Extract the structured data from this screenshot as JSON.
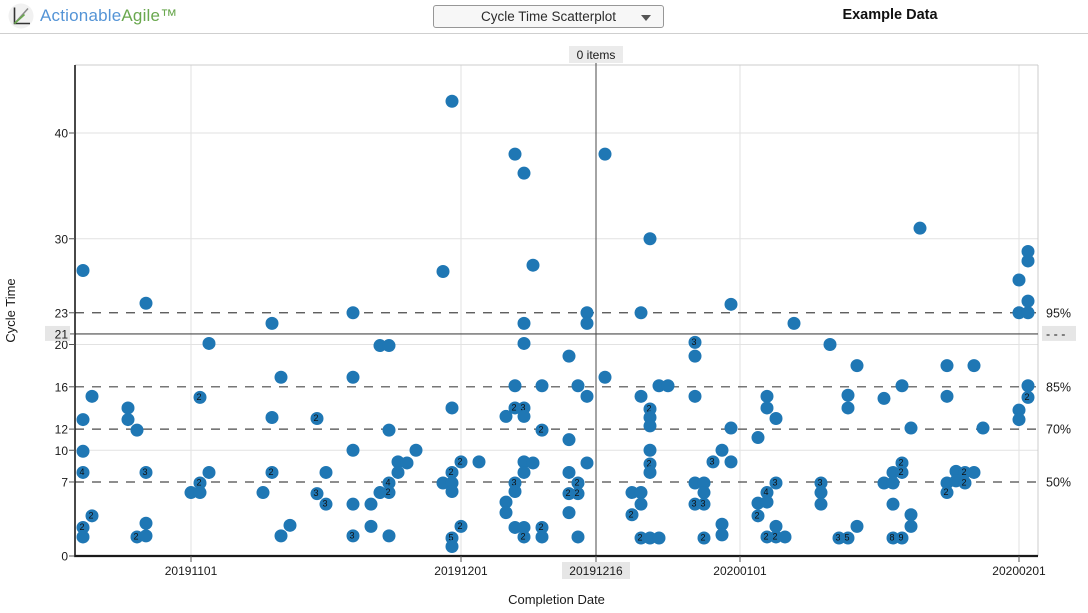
{
  "header": {
    "logo_text_1": "Actionable",
    "logo_text_2": "Agile™",
    "chart_selector_label": "Cycle Time Scatterplot",
    "dataset_label": "Example Data"
  },
  "chart": {
    "ylabel": "Cycle Time",
    "xlabel": "Completion Date",
    "items_label": "0 items",
    "colors": {
      "dot": "#1f77b4",
      "gridline": "#e2e2e2",
      "plot_border": "#cccccc",
      "axis_line": "#1a1a1a",
      "percentile_line": "#4a4a4a",
      "crosshair_line": "#4a4a4a",
      "highlight_bg": "#e6e6e6",
      "logo_blue": "#5494d6",
      "logo_green": "#6aa84f"
    },
    "y_ticks": [
      0,
      7,
      10,
      12,
      16,
      20,
      21,
      23,
      30,
      40
    ],
    "y_gridline_values": [
      10,
      20,
      30,
      40
    ],
    "x_ticks": [
      "20191101",
      "20191201",
      "20200101",
      "20200201"
    ],
    "percentiles": [
      {
        "label": "95%",
        "value": 23
      },
      {
        "label": "85%",
        "value": 16
      },
      {
        "label": "70%",
        "value": 12
      },
      {
        "label": "50%",
        "value": 7
      }
    ],
    "crosshair": {
      "x_date": "20191216",
      "x_label": "20191216",
      "y_value": 21,
      "y_label": "21",
      "right_label": "- - -"
    }
  },
  "chart_data": {
    "type": "scatter",
    "title": "Cycle Time Scatterplot",
    "xlabel": "Completion Date",
    "ylabel": "Cycle Time",
    "x_range": [
      "20191019",
      "20200203"
    ],
    "ylim": [
      0,
      46
    ],
    "legend": "none",
    "point_format": [
      "completion_date_yyyymmdd",
      "cycle_time_days",
      "stacked_item_count_label_0_means_single"
    ],
    "points": [
      [
        "20191020",
        27.0,
        0
      ],
      [
        "20191021",
        15.1,
        0
      ],
      [
        "20191020",
        12.9,
        0
      ],
      [
        "20191020",
        9.9,
        0
      ],
      [
        "20191020",
        7.9,
        4
      ],
      [
        "20191021",
        3.8,
        2
      ],
      [
        "20191020",
        2.7,
        2
      ],
      [
        "20191020",
        1.8,
        0
      ],
      [
        "20191025",
        14.0,
        0
      ],
      [
        "20191025",
        12.9,
        0
      ],
      [
        "20191026",
        11.9,
        0
      ],
      [
        "20191027",
        23.9,
        0
      ],
      [
        "20191027",
        7.9,
        3
      ],
      [
        "20191027",
        3.1,
        0
      ],
      [
        "20191026",
        1.8,
        2
      ],
      [
        "20191027",
        1.9,
        0
      ],
      [
        "20191103",
        20.1,
        0
      ],
      [
        "20191102",
        15.0,
        2
      ],
      [
        "20191103",
        7.9,
        0
      ],
      [
        "20191102",
        6.9,
        2
      ],
      [
        "20191101",
        6.0,
        0
      ],
      [
        "20191102",
        6.0,
        0
      ],
      [
        "20191110",
        22.0,
        0
      ],
      [
        "20191111",
        16.9,
        0
      ],
      [
        "20191110",
        13.1,
        0
      ],
      [
        "20191110",
        7.9,
        2
      ],
      [
        "20191109",
        6.0,
        0
      ],
      [
        "20191112",
        2.9,
        0
      ],
      [
        "20191111",
        1.9,
        0
      ],
      [
        "20191115",
        13.0,
        2
      ],
      [
        "20191116",
        7.9,
        0
      ],
      [
        "20191115",
        5.9,
        3
      ],
      [
        "20191116",
        4.9,
        3
      ],
      [
        "20191119",
        23.0,
        0
      ],
      [
        "20191119",
        16.9,
        0
      ],
      [
        "20191119",
        10.0,
        0
      ],
      [
        "20191119",
        4.9,
        0
      ],
      [
        "20191121",
        4.9,
        0
      ],
      [
        "20191121",
        2.8,
        0
      ],
      [
        "20191119",
        1.9,
        3
      ],
      [
        "20191122",
        19.9,
        0
      ],
      [
        "20191123",
        19.9,
        0
      ],
      [
        "20191123",
        11.9,
        0
      ],
      [
        "20191124",
        8.9,
        0
      ],
      [
        "20191123",
        6.9,
        4
      ],
      [
        "20191123",
        6.0,
        2
      ],
      [
        "20191122",
        6.0,
        0
      ],
      [
        "20191126",
        10.0,
        0
      ],
      [
        "20191125",
        8.8,
        0
      ],
      [
        "20191124",
        7.9,
        0
      ],
      [
        "20191123",
        1.9,
        0
      ],
      [
        "20191130",
        43.0,
        0
      ],
      [
        "20191129",
        26.9,
        0
      ],
      [
        "20191130",
        14.0,
        0
      ],
      [
        "20191201",
        8.9,
        2
      ],
      [
        "20191130",
        7.9,
        2
      ],
      [
        "20191203",
        8.9,
        0
      ],
      [
        "20191129",
        6.9,
        0
      ],
      [
        "20191130",
        6.9,
        0
      ],
      [
        "20191130",
        6.1,
        0
      ],
      [
        "20191201",
        2.8,
        2
      ],
      [
        "20191130",
        1.7,
        5
      ],
      [
        "20191130",
        0.9,
        0
      ],
      [
        "20191207",
        38.0,
        0
      ],
      [
        "20191208",
        36.2,
        0
      ],
      [
        "20191209",
        27.5,
        0
      ],
      [
        "20191208",
        22.0,
        0
      ],
      [
        "20191208",
        20.1,
        0
      ],
      [
        "20191207",
        16.1,
        0
      ],
      [
        "20191210",
        16.1,
        0
      ],
      [
        "20191207",
        14.0,
        2
      ],
      [
        "20191208",
        14.0,
        3
      ],
      [
        "20191206",
        13.2,
        0
      ],
      [
        "20191208",
        13.2,
        0
      ],
      [
        "20191210",
        11.9,
        2
      ],
      [
        "20191208",
        8.9,
        0
      ],
      [
        "20191209",
        8.8,
        0
      ],
      [
        "20191208",
        7.9,
        0
      ],
      [
        "20191207",
        6.9,
        3
      ],
      [
        "20191207",
        6.1,
        0
      ],
      [
        "20191206",
        5.1,
        0
      ],
      [
        "20191206",
        4.1,
        0
      ],
      [
        "20191207",
        2.7,
        0
      ],
      [
        "20191208",
        2.7,
        0
      ],
      [
        "20191208",
        1.8,
        2
      ],
      [
        "20191210",
        2.7,
        2
      ],
      [
        "20191210",
        1.8,
        0
      ],
      [
        "20191213",
        18.9,
        0
      ],
      [
        "20191214",
        16.1,
        0
      ],
      [
        "20191215",
        15.1,
        0
      ],
      [
        "20191213",
        11.0,
        0
      ],
      [
        "20191215",
        8.8,
        0
      ],
      [
        "20191213",
        7.9,
        0
      ],
      [
        "20191214",
        6.9,
        2
      ],
      [
        "20191213",
        5.9,
        2
      ],
      [
        "20191214",
        5.9,
        2
      ],
      [
        "20191213",
        4.1,
        0
      ],
      [
        "20191214",
        1.8,
        0
      ],
      [
        "20191215",
        23.0,
        0
      ],
      [
        "20191215",
        22.0,
        0
      ],
      [
        "20191217",
        38.0,
        0
      ],
      [
        "20191222",
        30.0,
        0
      ],
      [
        "20191221",
        23.0,
        0
      ],
      [
        "20191217",
        16.9,
        0
      ],
      [
        "20191223",
        16.1,
        0
      ],
      [
        "20191224",
        16.1,
        0
      ],
      [
        "20191221",
        15.1,
        0
      ],
      [
        "20191222",
        13.9,
        2
      ],
      [
        "20191222",
        13.1,
        0
      ],
      [
        "20191222",
        12.3,
        0
      ],
      [
        "20191222",
        10.0,
        0
      ],
      [
        "20191222",
        8.7,
        2
      ],
      [
        "20191222",
        7.9,
        0
      ],
      [
        "20191220",
        6.0,
        0
      ],
      [
        "20191221",
        6.0,
        0
      ],
      [
        "20191221",
        4.9,
        0
      ],
      [
        "20191220",
        3.9,
        2
      ],
      [
        "20191221",
        1.7,
        2
      ],
      [
        "20191222",
        1.7,
        0
      ],
      [
        "20191223",
        1.7,
        0
      ],
      [
        "20191227",
        20.2,
        3
      ],
      [
        "20191227",
        18.9,
        0
      ],
      [
        "20191227",
        15.1,
        0
      ],
      [
        "20191229",
        8.9,
        3
      ],
      [
        "20191230",
        10.0,
        0
      ],
      [
        "20191231",
        8.9,
        0
      ],
      [
        "20191227",
        6.9,
        0
      ],
      [
        "20191228",
        6.9,
        0
      ],
      [
        "20191228",
        6.0,
        0
      ],
      [
        "20191227",
        4.9,
        3
      ],
      [
        "20191228",
        4.9,
        3
      ],
      [
        "20191230",
        3.0,
        0
      ],
      [
        "20191230",
        2.0,
        0
      ],
      [
        "20191228",
        1.7,
        2
      ],
      [
        "20191231",
        23.8,
        0
      ],
      [
        "20191231",
        12.1,
        0
      ],
      [
        "20200107",
        22.0,
        0
      ],
      [
        "20200104",
        15.1,
        0
      ],
      [
        "20200104",
        14.0,
        0
      ],
      [
        "20200105",
        13.0,
        0
      ],
      [
        "20200103",
        11.2,
        0
      ],
      [
        "20200105",
        6.9,
        3
      ],
      [
        "20200104",
        6.0,
        4
      ],
      [
        "20200103",
        5.0,
        0
      ],
      [
        "20200104",
        5.1,
        0
      ],
      [
        "20200103",
        3.8,
        2
      ],
      [
        "20200105",
        2.8,
        0
      ],
      [
        "20200104",
        1.8,
        2
      ],
      [
        "20200105",
        1.8,
        2
      ],
      [
        "20200106",
        1.8,
        0
      ],
      [
        "20200111",
        20.0,
        0
      ],
      [
        "20200110",
        6.9,
        3
      ],
      [
        "20200110",
        6.0,
        0
      ],
      [
        "20200110",
        4.9,
        0
      ],
      [
        "20200112",
        1.7,
        3
      ],
      [
        "20200113",
        1.7,
        5
      ],
      [
        "20200114",
        2.8,
        0
      ],
      [
        "20200114",
        18.0,
        0
      ],
      [
        "20200113",
        15.2,
        0
      ],
      [
        "20200113",
        14.0,
        0
      ],
      [
        "20200117",
        14.9,
        0
      ],
      [
        "20200119",
        16.1,
        0
      ],
      [
        "20200118",
        7.9,
        0
      ],
      [
        "20200119",
        8.8,
        2
      ],
      [
        "20200119",
        7.9,
        2
      ],
      [
        "20200117",
        6.9,
        0
      ],
      [
        "20200118",
        6.9,
        0
      ],
      [
        "20200118",
        4.9,
        0
      ],
      [
        "20200120",
        3.9,
        0
      ],
      [
        "20200120",
        2.8,
        0
      ],
      [
        "20200118",
        1.7,
        8
      ],
      [
        "20200119",
        1.7,
        9
      ],
      [
        "20200121",
        31.0,
        0
      ],
      [
        "20200120",
        12.1,
        0
      ],
      [
        "20200124",
        18.0,
        0
      ],
      [
        "20200127",
        18.0,
        0
      ],
      [
        "20200124",
        15.1,
        0
      ],
      [
        "20200125",
        8.0,
        0
      ],
      [
        "20200124",
        6.9,
        0
      ],
      [
        "20200125",
        7.1,
        0
      ],
      [
        "20200126",
        7.9,
        2
      ],
      [
        "20200126",
        6.9,
        2
      ],
      [
        "20200127",
        7.9,
        0
      ],
      [
        "20200124",
        6.0,
        2
      ],
      [
        "20200128",
        12.1,
        0
      ],
      [
        "20200202",
        28.8,
        0
      ],
      [
        "20200202",
        27.9,
        0
      ],
      [
        "20200201",
        26.1,
        0
      ],
      [
        "20200202",
        24.1,
        0
      ],
      [
        "20200201",
        23.0,
        0
      ],
      [
        "20200202",
        23.0,
        0
      ],
      [
        "20200202",
        16.1,
        0
      ],
      [
        "20200202",
        15.0,
        2
      ],
      [
        "20200201",
        13.8,
        0
      ],
      [
        "20200201",
        12.9,
        0
      ]
    ]
  }
}
